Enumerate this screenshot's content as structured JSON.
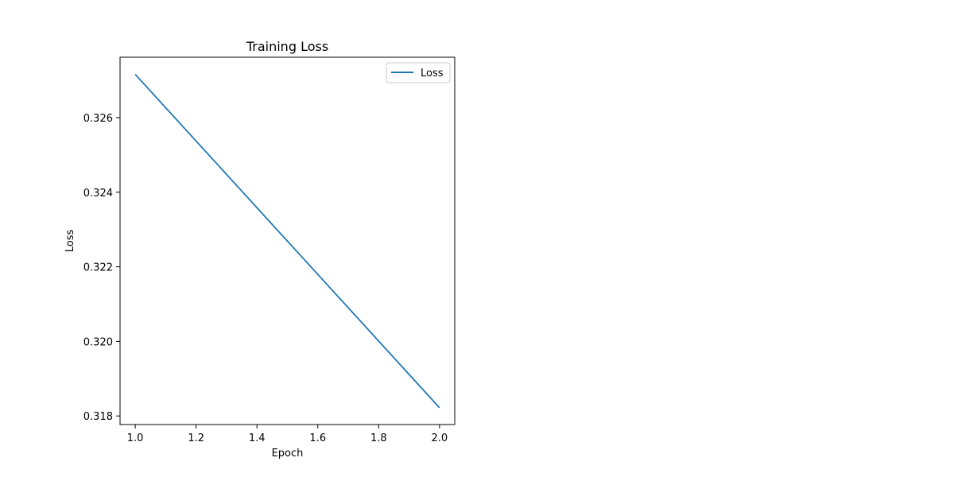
{
  "chart_data": {
    "type": "line",
    "title": "Training Loss",
    "xlabel": "Epoch",
    "ylabel": "Loss",
    "xlim": [
      0.95,
      2.05
    ],
    "ylim": [
      0.31777,
      0.32762
    ],
    "xticks": [
      1.0,
      1.2,
      1.4,
      1.6,
      1.8,
      2.0
    ],
    "xtick_labels": [
      "1.0",
      "1.2",
      "1.4",
      "1.6",
      "1.8",
      "2.0"
    ],
    "yticks": [
      0.318,
      0.32,
      0.322,
      0.324,
      0.326
    ],
    "ytick_labels": [
      "0.318",
      "0.320",
      "0.322",
      "0.324",
      "0.326"
    ],
    "grid": false,
    "legend_position": "upper-right",
    "series": [
      {
        "name": "Loss",
        "color": "#1f77b4",
        "x": [
          1,
          2
        ],
        "y": [
          0.32716,
          0.31822
        ]
      }
    ]
  }
}
